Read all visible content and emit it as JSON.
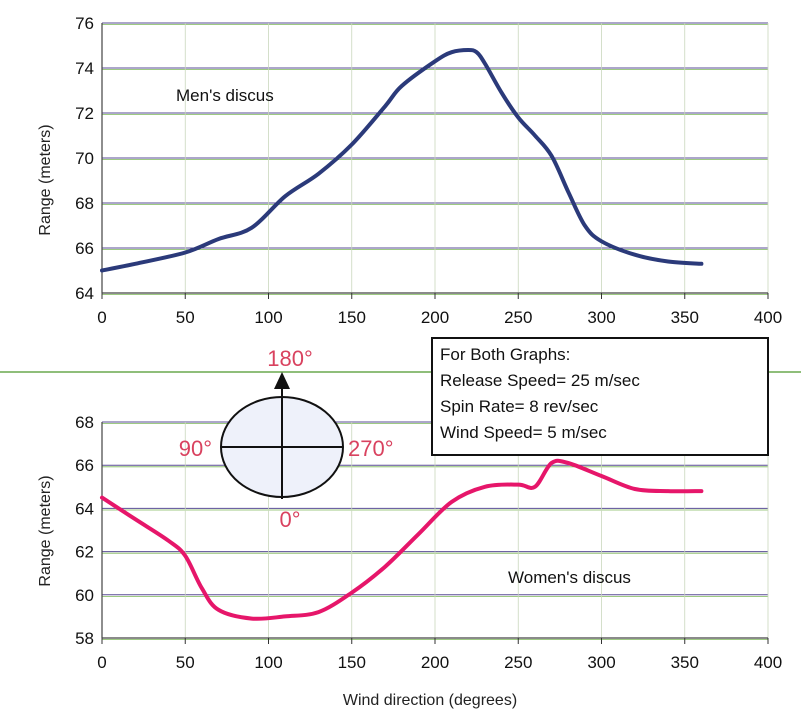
{
  "chart_data": [
    {
      "type": "line",
      "title": "",
      "xlabel": "",
      "ylabel": "Range (meters)",
      "xlim": [
        0,
        400
      ],
      "ylim": [
        64,
        76
      ],
      "xticks": [
        0,
        50,
        100,
        150,
        200,
        250,
        300,
        350,
        400
      ],
      "yticks": [
        64,
        66,
        68,
        70,
        72,
        74,
        76
      ],
      "grid": true,
      "annotation": "Men's discus",
      "series": [
        {
          "color": "#2b3a7a",
          "x": [
            0,
            20,
            50,
            70,
            90,
            110,
            130,
            150,
            170,
            180,
            200,
            210,
            220,
            225,
            230,
            240,
            250,
            260,
            270,
            280,
            290,
            300,
            320,
            340,
            360
          ],
          "y": [
            65.0,
            65.3,
            65.8,
            66.4,
            66.9,
            68.3,
            69.3,
            70.6,
            72.3,
            73.2,
            74.3,
            74.7,
            74.8,
            74.7,
            74.2,
            72.9,
            71.8,
            71.0,
            70.1,
            68.5,
            67.0,
            66.3,
            65.7,
            65.4,
            65.3
          ]
        }
      ]
    },
    {
      "type": "line",
      "title": "",
      "xlabel": "Wind direction (degrees)",
      "ylabel": "Range (meters)",
      "xlim": [
        0,
        400
      ],
      "ylim": [
        58,
        68
      ],
      "xticks": [
        0,
        50,
        100,
        150,
        200,
        250,
        300,
        350,
        400
      ],
      "yticks": [
        58,
        60,
        62,
        64,
        66,
        68
      ],
      "grid": true,
      "annotation": "Women's discus",
      "series": [
        {
          "color": "#e6166a",
          "x": [
            0,
            20,
            40,
            50,
            60,
            70,
            90,
            110,
            130,
            150,
            170,
            190,
            210,
            230,
            250,
            260,
            270,
            280,
            300,
            320,
            340,
            360
          ],
          "y": [
            64.5,
            63.5,
            62.5,
            61.8,
            60.3,
            59.3,
            58.9,
            59.0,
            59.2,
            60.1,
            61.3,
            62.8,
            64.3,
            65.0,
            65.1,
            65.0,
            66.1,
            66.1,
            65.5,
            64.9,
            64.8,
            64.8
          ]
        }
      ]
    }
  ],
  "info_box": {
    "lines": [
      "For Both Graphs:",
      "Release Speed= 25 m/sec",
      "Spin Rate= 8 rev/sec",
      "Wind Speed= 5 m/sec"
    ]
  },
  "compass": {
    "top": "180°",
    "left": "90°",
    "right": "270°",
    "bottom": "0°"
  },
  "colors": {
    "men_line": "#2b3a7a",
    "women_line": "#e6166a",
    "compass_label": "#d9425f",
    "grid_primary": "#5a4d96",
    "grid_secondary": "#7fb85a"
  }
}
